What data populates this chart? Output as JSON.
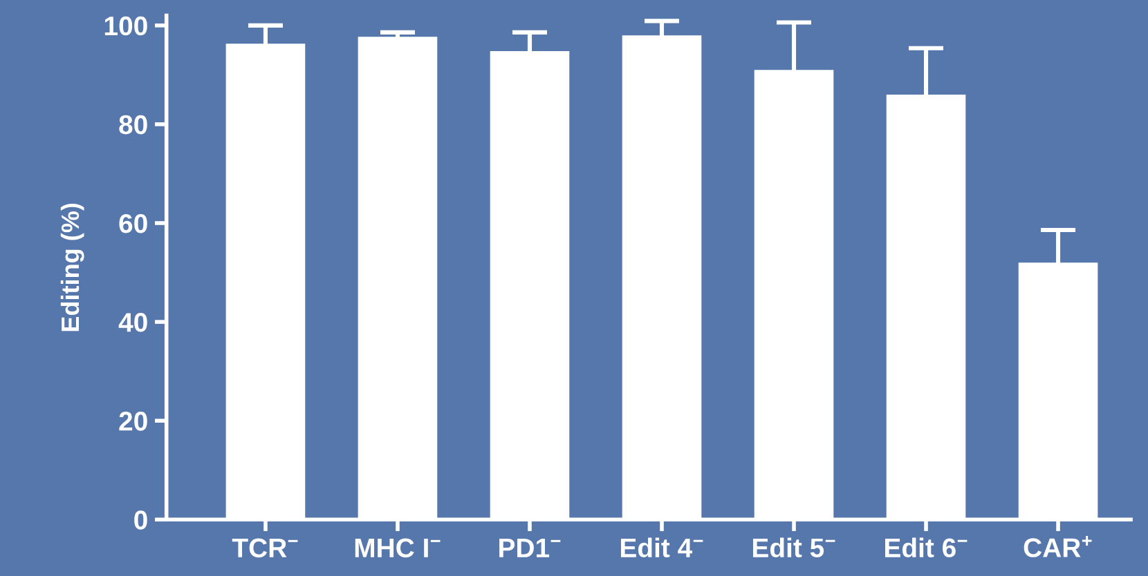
{
  "chart_data": {
    "type": "bar",
    "ylabel": "Editing (%)",
    "categories": [
      "TCR$^{−}$",
      "MHC I$^{−}$",
      "PD1$^{−}$",
      "Edit 4$^{−}$",
      "Edit 5$^{−}$",
      "Edit 6$^{−}$",
      "CAR$^{+}$"
    ],
    "values": [
      96.3,
      97.7,
      94.8,
      98,
      91,
      86,
      52
    ],
    "errors": [
      3.7,
      0.9,
      3.8,
      2.9,
      9.6,
      9.4,
      6.6
    ],
    "color": "#ffffff",
    "ylim": [
      0,
      102
    ],
    "yticks": [
      0,
      20,
      40,
      60,
      80,
      100
    ],
    "grid": false
  }
}
